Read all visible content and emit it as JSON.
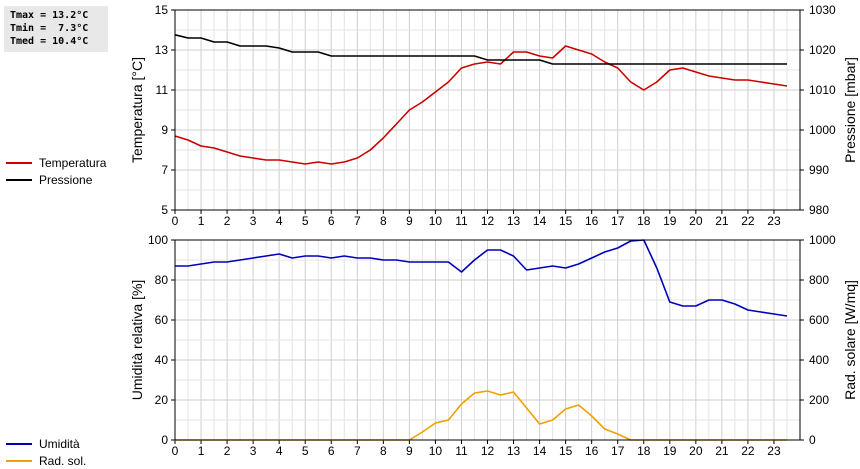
{
  "stats": {
    "tmax": "Tmax = 13.2°C",
    "tmin": "Tmin =  7.3°C",
    "tmed": "Tmed = 10.4°C"
  },
  "chart_data": [
    {
      "type": "line",
      "title": "",
      "xlabel": "",
      "ylabel": "Temperatura [°C]",
      "y2label": "Pressione [mbar]",
      "xlim": [
        0,
        24
      ],
      "ylim": [
        5,
        15
      ],
      "y2lim": [
        980,
        1030
      ],
      "xticks": [
        "0",
        "1",
        "2",
        "3",
        "4",
        "5",
        "6",
        "7",
        "8",
        "9",
        "10",
        "11",
        "12",
        "13",
        "14",
        "15",
        "16",
        "17",
        "18",
        "19",
        "20",
        "21",
        "22",
        "23"
      ],
      "yticks": [
        "5",
        "7",
        "9",
        "11",
        "13",
        "15"
      ],
      "y2ticks": [
        "980",
        "990",
        "1000",
        "1010",
        "1020",
        "1030"
      ],
      "grid": true,
      "legend": "left",
      "series": [
        {
          "name": "Temperatura",
          "axis": "left",
          "color": "#cc0000",
          "x": [
            0,
            0.5,
            1,
            1.5,
            2,
            2.5,
            3,
            3.5,
            4,
            4.5,
            5,
            5.5,
            6,
            6.5,
            7,
            7.5,
            8,
            8.5,
            9,
            9.5,
            10,
            10.5,
            11,
            11.5,
            12,
            12.5,
            13,
            13.5,
            14,
            14.5,
            15,
            15.5,
            16,
            16.5,
            17,
            17.5,
            18,
            18.5,
            19,
            19.5,
            20,
            20.5,
            21,
            21.5,
            22,
            22.5,
            23,
            23.5
          ],
          "values": [
            8.7,
            8.5,
            8.2,
            8.1,
            7.9,
            7.7,
            7.6,
            7.5,
            7.5,
            7.4,
            7.3,
            7.4,
            7.3,
            7.4,
            7.6,
            8.0,
            8.6,
            9.3,
            10.0,
            10.4,
            10.9,
            11.4,
            12.1,
            12.3,
            12.4,
            12.3,
            12.9,
            12.9,
            12.7,
            12.6,
            13.2,
            13.0,
            12.8,
            12.4,
            12.1,
            11.4,
            11.0,
            11.4,
            12.0,
            12.1,
            11.9,
            11.7,
            11.6,
            11.5,
            11.5,
            11.4,
            11.3,
            11.2
          ]
        },
        {
          "name": "Pressione",
          "axis": "right",
          "color": "#000000",
          "x": [
            0,
            0.5,
            1,
            1.5,
            2,
            2.5,
            3,
            3.5,
            4,
            4.5,
            5,
            5.5,
            6,
            6.5,
            7,
            7.5,
            8,
            8.5,
            9,
            9.5,
            10,
            10.5,
            11,
            11.5,
            12,
            12.5,
            13,
            13.5,
            14,
            14.5,
            15,
            15.5,
            16,
            16.5,
            17,
            17.5,
            18,
            18.5,
            19,
            19.5,
            20,
            20.5,
            21,
            21.5,
            22,
            22.5,
            23,
            23.5
          ],
          "values": [
            1023.8,
            1023,
            1023,
            1022,
            1022,
            1021,
            1021,
            1021,
            1020.5,
            1019.5,
            1019.5,
            1019.5,
            1018.5,
            1018.5,
            1018.5,
            1018.5,
            1018.5,
            1018.5,
            1018.5,
            1018.5,
            1018.5,
            1018.5,
            1018.5,
            1018.5,
            1017.5,
            1017.5,
            1017.5,
            1017.5,
            1017.5,
            1016.5,
            1016.5,
            1016.5,
            1016.5,
            1016.5,
            1016.5,
            1016.5,
            1016.5,
            1016.5,
            1016.5,
            1016.5,
            1016.5,
            1016.5,
            1016.5,
            1016.5,
            1016.5,
            1016.5,
            1016.5,
            1016.5
          ]
        }
      ]
    },
    {
      "type": "line",
      "title": "",
      "xlabel": "",
      "ylabel": "Umidità relativa [%]",
      "y2label": "Rad. solare [W/mq]",
      "xlim": [
        0,
        24
      ],
      "ylim": [
        0,
        100
      ],
      "y2lim": [
        0,
        1000
      ],
      "xticks": [
        "0",
        "1",
        "2",
        "3",
        "4",
        "5",
        "6",
        "7",
        "8",
        "9",
        "10",
        "11",
        "12",
        "13",
        "14",
        "15",
        "16",
        "17",
        "18",
        "19",
        "20",
        "21",
        "22",
        "23"
      ],
      "yticks": [
        "0",
        "20",
        "40",
        "60",
        "80",
        "100"
      ],
      "y2ticks": [
        "0",
        "200",
        "400",
        "600",
        "800",
        "1000"
      ],
      "grid": true,
      "legend": "left",
      "series": [
        {
          "name": "Umidità",
          "axis": "left",
          "color": "#0000bb",
          "x": [
            0,
            0.5,
            1,
            1.5,
            2,
            2.5,
            3,
            3.5,
            4,
            4.5,
            5,
            5.5,
            6,
            6.5,
            7,
            7.5,
            8,
            8.5,
            9,
            9.5,
            10,
            10.5,
            11,
            11.5,
            12,
            12.5,
            13,
            13.5,
            14,
            14.5,
            15,
            15.5,
            16,
            16.5,
            17,
            17.5,
            18,
            18.5,
            19,
            19.5,
            20,
            20.5,
            21,
            21.5,
            22,
            22.5,
            23,
            23.5
          ],
          "values": [
            87,
            87,
            88,
            89,
            89,
            90,
            91,
            92,
            93,
            91,
            92,
            92,
            91,
            92,
            91,
            91,
            90,
            90,
            89,
            89,
            89,
            89,
            84,
            90,
            95,
            95,
            92,
            85,
            86,
            87,
            86,
            88,
            91,
            94,
            96,
            99.5,
            100,
            86,
            69,
            67,
            67,
            70,
            70,
            68,
            65,
            64,
            63,
            62
          ]
        },
        {
          "name": "Rad. sol.",
          "axis": "right",
          "color": "#f0a000",
          "x": [
            0,
            0.5,
            1,
            1.5,
            2,
            2.5,
            3,
            3.5,
            4,
            4.5,
            5,
            5.5,
            6,
            6.5,
            7,
            7.5,
            8,
            8.5,
            9,
            9.5,
            10,
            10.5,
            11,
            11.5,
            12,
            12.5,
            13,
            13.5,
            14,
            14.5,
            15,
            15.5,
            16,
            16.5,
            17,
            17.5,
            18,
            18.5,
            19,
            19.5,
            20,
            20.5,
            21,
            21.5,
            22,
            22.5,
            23,
            23.5
          ],
          "values": [
            0,
            0,
            0,
            0,
            0,
            0,
            0,
            0,
            0,
            0,
            0,
            0,
            0,
            0,
            0,
            0,
            0,
            0,
            0,
            40,
            85,
            100,
            180,
            235,
            245,
            225,
            240,
            160,
            80,
            100,
            155,
            175,
            120,
            55,
            30,
            0,
            0,
            0,
            0,
            0,
            0,
            0,
            0,
            0,
            0,
            0,
            0,
            0
          ]
        }
      ]
    }
  ]
}
